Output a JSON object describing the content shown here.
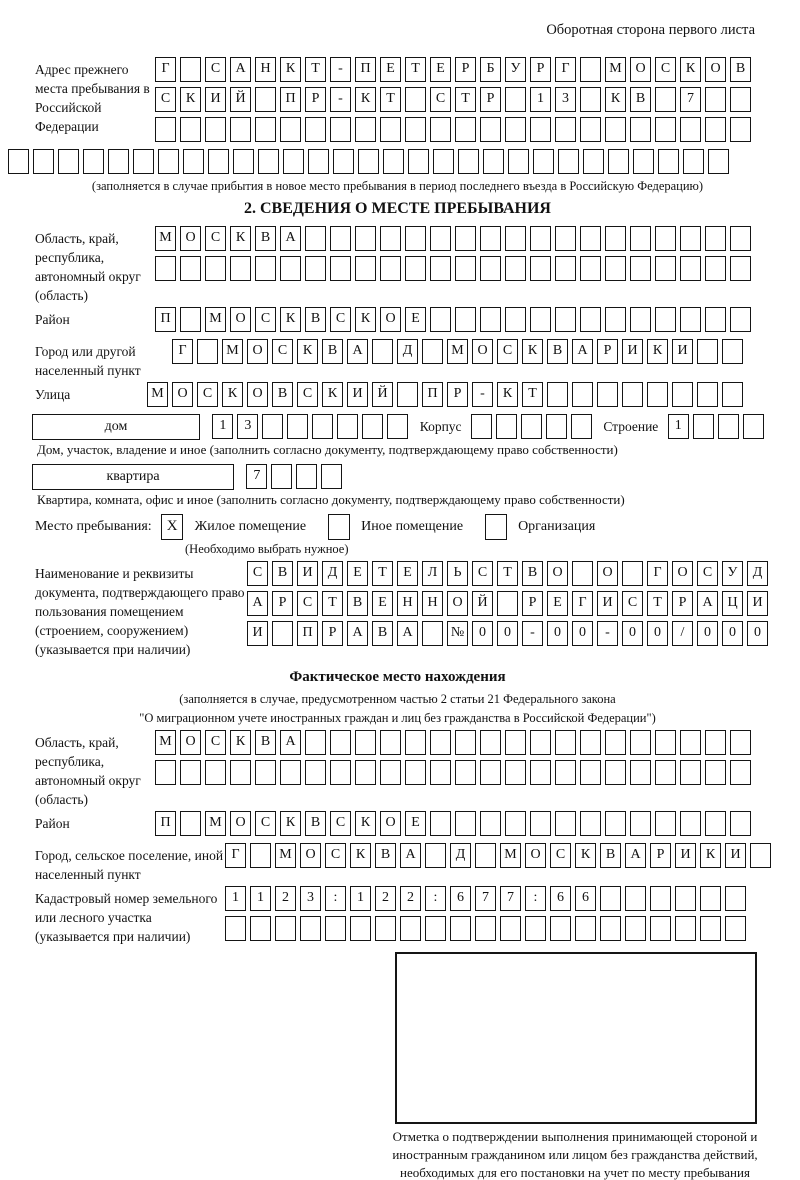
{
  "header": {
    "back_note": "Оборотная сторона первого листа"
  },
  "prev_address": {
    "label": "Адрес прежнего места пребывания в Российской Федерации",
    "rows": [
      {
        "cells": "Г САНКТ-ПЕТЕРБУРГ МОСКОВ",
        "len": 24
      },
      {
        "cells": "СКИЙ ПР-КТ СТР 13 КВ 7",
        "len": 24
      },
      {
        "cells": "",
        "len": 24
      },
      {
        "cells": "",
        "len": 29
      }
    ],
    "note": "(заполняется в случае прибытия в новое место пребывания в период последнего въезда в Российскую Федерацию)"
  },
  "section2": {
    "title": "2. СВЕДЕНИЯ О МЕСТЕ ПРЕБЫВАНИЯ",
    "region": {
      "label": "Область, край, республика, автономный округ (область)",
      "rows": [
        {
          "cells": "МОСКВА",
          "len": 24
        },
        {
          "cells": "",
          "len": 24
        }
      ]
    },
    "district": {
      "label": "Район",
      "row": {
        "cells": "П МОСКВСКОЕ",
        "len": 24
      }
    },
    "city": {
      "label": "Город или другой населенный пункт",
      "row": {
        "cells": "Г МОСКВА Д МОСКВАРИКИ",
        "len": 23
      }
    },
    "street": {
      "label": "Улица",
      "row": {
        "cells": "МОСКОВСКИЙ ПР-КТ",
        "len": 24
      }
    },
    "house": {
      "box_label": "дом",
      "cells_spec": {
        "cells": "13",
        "len": 8
      }
    },
    "korpus": {
      "label": "Корпус",
      "cells_spec": {
        "cells": "",
        "len": 5
      }
    },
    "stroenie": {
      "label": "Строение",
      "cells_spec": {
        "cells": "1",
        "len": 4
      }
    },
    "house_caption": "Дом, участок, владение и иное (заполнить согласно документу, подтверждающему право собственности)",
    "flat": {
      "box_label": "квартира",
      "cells_spec": {
        "cells": "7",
        "len": 4
      }
    },
    "flat_caption": "Квартира, комната, офис и иное (заполнить согласно документу, подтверждающему право собственности)",
    "place_type": {
      "label": "Место пребывания:",
      "options": [
        {
          "label": "Жилое помещение",
          "checked": true
        },
        {
          "label": "Иное помещение",
          "checked": false
        },
        {
          "label": "Организация",
          "checked": false
        }
      ],
      "note": "(Необходимо выбрать нужное)"
    },
    "doc": {
      "label": "Наименование и реквизиты документа, подтверждающего право пользования помещением (строением, сооружением) (указывается при наличии)",
      "rows": [
        {
          "cells": "СВИДЕТЕЛЬСТВО О ГОСУД",
          "len": 21
        },
        {
          "cells": "АРСТВЕННОЙ РЕГИСТРАЦИ",
          "len": 21
        },
        {
          "cells": "И ПРАВА №00-00-00/000",
          "len": 21
        }
      ]
    }
  },
  "actual_location": {
    "title": "Фактическое место нахождения",
    "note_line1": "(заполняется в случае, предусмотренном частью 2 статьи 21 Федерального закона",
    "note_line2": "\"О миграционном учете иностранных граждан и лиц без гражданства в Российской Федерации\")",
    "region": {
      "label": "Область, край, республика, автономный округ (область)",
      "rows": [
        {
          "cells": "МОСКВА",
          "len": 24
        },
        {
          "cells": "",
          "len": 24
        }
      ]
    },
    "district": {
      "label": "Район",
      "row": {
        "cells": "П МОСКВСКОЕ",
        "len": 24
      }
    },
    "city": {
      "label": "Город, сельское поселение, иной населенный пункт",
      "row": {
        "cells": "Г МОСКВА Д МОСКВАРИКИ",
        "len": 22
      }
    },
    "cadastre": {
      "label": "Кадастровый номер земельного или лесного участка (указывается при наличии)",
      "rows": [
        {
          "cells": "1123:122:677:66",
          "len": 21
        },
        {
          "cells": "",
          "len": 21
        }
      ]
    },
    "stamp_caption": "Отметка о подтверждении выполнения принимающей стороной и иностранным гражданином или лицом без гражданства действий, необходимых для его постановки на учет по месту пребывания"
  }
}
